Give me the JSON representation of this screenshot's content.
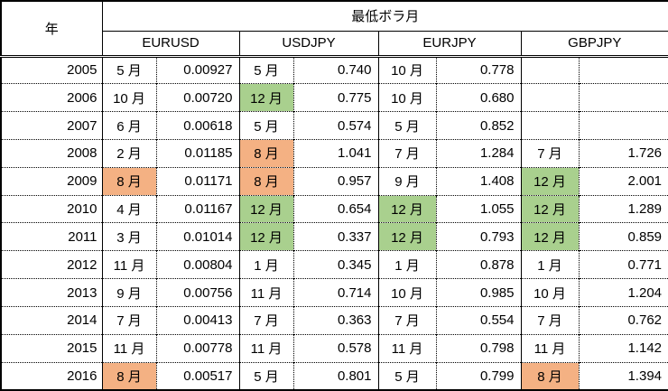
{
  "colors": {
    "green_highlight": "#A9D08E",
    "orange_highlight": "#F4B183",
    "border": "#000000",
    "background": "#FFFFFF",
    "text": "#000000"
  },
  "header": {
    "year_label": "年",
    "group_label": "最低ボラ月",
    "pairs": [
      "EURUSD",
      "USDJPY",
      "EURJPY",
      "GBPJPY"
    ]
  },
  "table": {
    "rows": [
      {
        "year": "2005",
        "cells": [
          {
            "m": "5 月",
            "v": "0.00927",
            "h": ""
          },
          {
            "m": "5 月",
            "v": "0.740",
            "h": ""
          },
          {
            "m": "10 月",
            "v": "0.778",
            "h": ""
          },
          {
            "m": "",
            "v": "",
            "h": ""
          }
        ]
      },
      {
        "year": "2006",
        "cells": [
          {
            "m": "10 月",
            "v": "0.00720",
            "h": ""
          },
          {
            "m": "12 月",
            "v": "0.775",
            "h": "green"
          },
          {
            "m": "10 月",
            "v": "0.680",
            "h": ""
          },
          {
            "m": "",
            "v": "",
            "h": ""
          }
        ]
      },
      {
        "year": "2007",
        "cells": [
          {
            "m": "6 月",
            "v": "0.00618",
            "h": ""
          },
          {
            "m": "5 月",
            "v": "0.574",
            "h": ""
          },
          {
            "m": "5 月",
            "v": "0.852",
            "h": ""
          },
          {
            "m": "",
            "v": "",
            "h": ""
          }
        ]
      },
      {
        "year": "2008",
        "cells": [
          {
            "m": "2 月",
            "v": "0.01185",
            "h": ""
          },
          {
            "m": "8 月",
            "v": "1.041",
            "h": "orange"
          },
          {
            "m": "7 月",
            "v": "1.284",
            "h": ""
          },
          {
            "m": "7 月",
            "v": "1.726",
            "h": ""
          }
        ]
      },
      {
        "year": "2009",
        "cells": [
          {
            "m": "8 月",
            "v": "0.01171",
            "h": "orange"
          },
          {
            "m": "8 月",
            "v": "0.957",
            "h": "orange"
          },
          {
            "m": "9 月",
            "v": "1.408",
            "h": ""
          },
          {
            "m": "12 月",
            "v": "2.001",
            "h": "green"
          }
        ]
      },
      {
        "year": "2010",
        "cells": [
          {
            "m": "4 月",
            "v": "0.01167",
            "h": ""
          },
          {
            "m": "12 月",
            "v": "0.654",
            "h": "green"
          },
          {
            "m": "12 月",
            "v": "1.055",
            "h": "green"
          },
          {
            "m": "12 月",
            "v": "1.289",
            "h": "green"
          }
        ]
      },
      {
        "year": "2011",
        "cells": [
          {
            "m": "3 月",
            "v": "0.01014",
            "h": ""
          },
          {
            "m": "12 月",
            "v": "0.337",
            "h": "green"
          },
          {
            "m": "12 月",
            "v": "0.793",
            "h": "green"
          },
          {
            "m": "12 月",
            "v": "0.859",
            "h": "green"
          }
        ]
      },
      {
        "year": "2012",
        "cells": [
          {
            "m": "11 月",
            "v": "0.00804",
            "h": ""
          },
          {
            "m": "1 月",
            "v": "0.345",
            "h": ""
          },
          {
            "m": "1 月",
            "v": "0.878",
            "h": ""
          },
          {
            "m": "1 月",
            "v": "0.771",
            "h": ""
          }
        ]
      },
      {
        "year": "2013",
        "cells": [
          {
            "m": "9 月",
            "v": "0.00756",
            "h": ""
          },
          {
            "m": "11 月",
            "v": "0.714",
            "h": ""
          },
          {
            "m": "10 月",
            "v": "0.985",
            "h": ""
          },
          {
            "m": "10 月",
            "v": "1.204",
            "h": ""
          }
        ]
      },
      {
        "year": "2014",
        "cells": [
          {
            "m": "7 月",
            "v": "0.00413",
            "h": ""
          },
          {
            "m": "7 月",
            "v": "0.363",
            "h": ""
          },
          {
            "m": "7 月",
            "v": "0.554",
            "h": ""
          },
          {
            "m": "7 月",
            "v": "0.762",
            "h": ""
          }
        ]
      },
      {
        "year": "2015",
        "cells": [
          {
            "m": "11 月",
            "v": "0.00778",
            "h": ""
          },
          {
            "m": "11 月",
            "v": "0.578",
            "h": ""
          },
          {
            "m": "11 月",
            "v": "0.798",
            "h": ""
          },
          {
            "m": "11 月",
            "v": "1.142",
            "h": ""
          }
        ]
      },
      {
        "year": "2016",
        "cells": [
          {
            "m": "8 月",
            "v": "0.00517",
            "h": "orange"
          },
          {
            "m": "5 月",
            "v": "0.801",
            "h": ""
          },
          {
            "m": "5 月",
            "v": "0.799",
            "h": ""
          },
          {
            "m": "8 月",
            "v": "1.394",
            "h": "orange"
          }
        ]
      }
    ]
  },
  "chart_data": {
    "type": "table",
    "title": "最低ボラ月",
    "row_header": "年",
    "years": [
      2005,
      2006,
      2007,
      2008,
      2009,
      2010,
      2011,
      2012,
      2013,
      2014,
      2015,
      2016
    ],
    "series": [
      {
        "name": "EURUSD",
        "months": [
          "5 月",
          "10 月",
          "6 月",
          "2 月",
          "8 月",
          "4 月",
          "3 月",
          "11 月",
          "9 月",
          "7 月",
          "11 月",
          "8 月"
        ],
        "values": [
          0.00927,
          0.0072,
          0.00618,
          0.01185,
          0.01171,
          0.01167,
          0.01014,
          0.00804,
          0.00756,
          0.00413,
          0.00778,
          0.00517
        ]
      },
      {
        "name": "USDJPY",
        "months": [
          "5 月",
          "12 月",
          "5 月",
          "8 月",
          "8 月",
          "12 月",
          "12 月",
          "1 月",
          "11 月",
          "7 月",
          "11 月",
          "5 月"
        ],
        "values": [
          0.74,
          0.775,
          0.574,
          1.041,
          0.957,
          0.654,
          0.337,
          0.345,
          0.714,
          0.363,
          0.578,
          0.801
        ]
      },
      {
        "name": "EURJPY",
        "months": [
          "10 月",
          "10 月",
          "5 月",
          "7 月",
          "9 月",
          "12 月",
          "12 月",
          "1 月",
          "10 月",
          "7 月",
          "11 月",
          "5 月"
        ],
        "values": [
          0.778,
          0.68,
          0.852,
          1.284,
          1.408,
          1.055,
          0.793,
          0.878,
          0.985,
          0.554,
          0.798,
          0.799
        ]
      },
      {
        "name": "GBPJPY",
        "months": [
          null,
          null,
          null,
          "7 月",
          "12 月",
          "12 月",
          "12 月",
          "1 月",
          "10 月",
          "7 月",
          "11 月",
          "8 月"
        ],
        "values": [
          null,
          null,
          null,
          1.726,
          2.001,
          1.289,
          0.859,
          0.771,
          1.204,
          0.762,
          1.142,
          1.394
        ]
      }
    ],
    "highlights": {
      "green": [
        {
          "year": 2006,
          "pair": "USDJPY"
        },
        {
          "year": 2009,
          "pair": "GBPJPY"
        },
        {
          "year": 2010,
          "pair": "USDJPY"
        },
        {
          "year": 2010,
          "pair": "EURJPY"
        },
        {
          "year": 2010,
          "pair": "GBPJPY"
        },
        {
          "year": 2011,
          "pair": "USDJPY"
        },
        {
          "year": 2011,
          "pair": "EURJPY"
        },
        {
          "year": 2011,
          "pair": "GBPJPY"
        }
      ],
      "orange": [
        {
          "year": 2008,
          "pair": "USDJPY"
        },
        {
          "year": 2009,
          "pair": "EURUSD"
        },
        {
          "year": 2009,
          "pair": "USDJPY"
        },
        {
          "year": 2016,
          "pair": "EURUSD"
        },
        {
          "year": 2016,
          "pair": "GBPJPY"
        }
      ]
    },
    "layout": {
      "grid": "dotted-row-separators",
      "group_columns": [
        "month",
        "volatility"
      ],
      "header_rows": 2
    }
  }
}
